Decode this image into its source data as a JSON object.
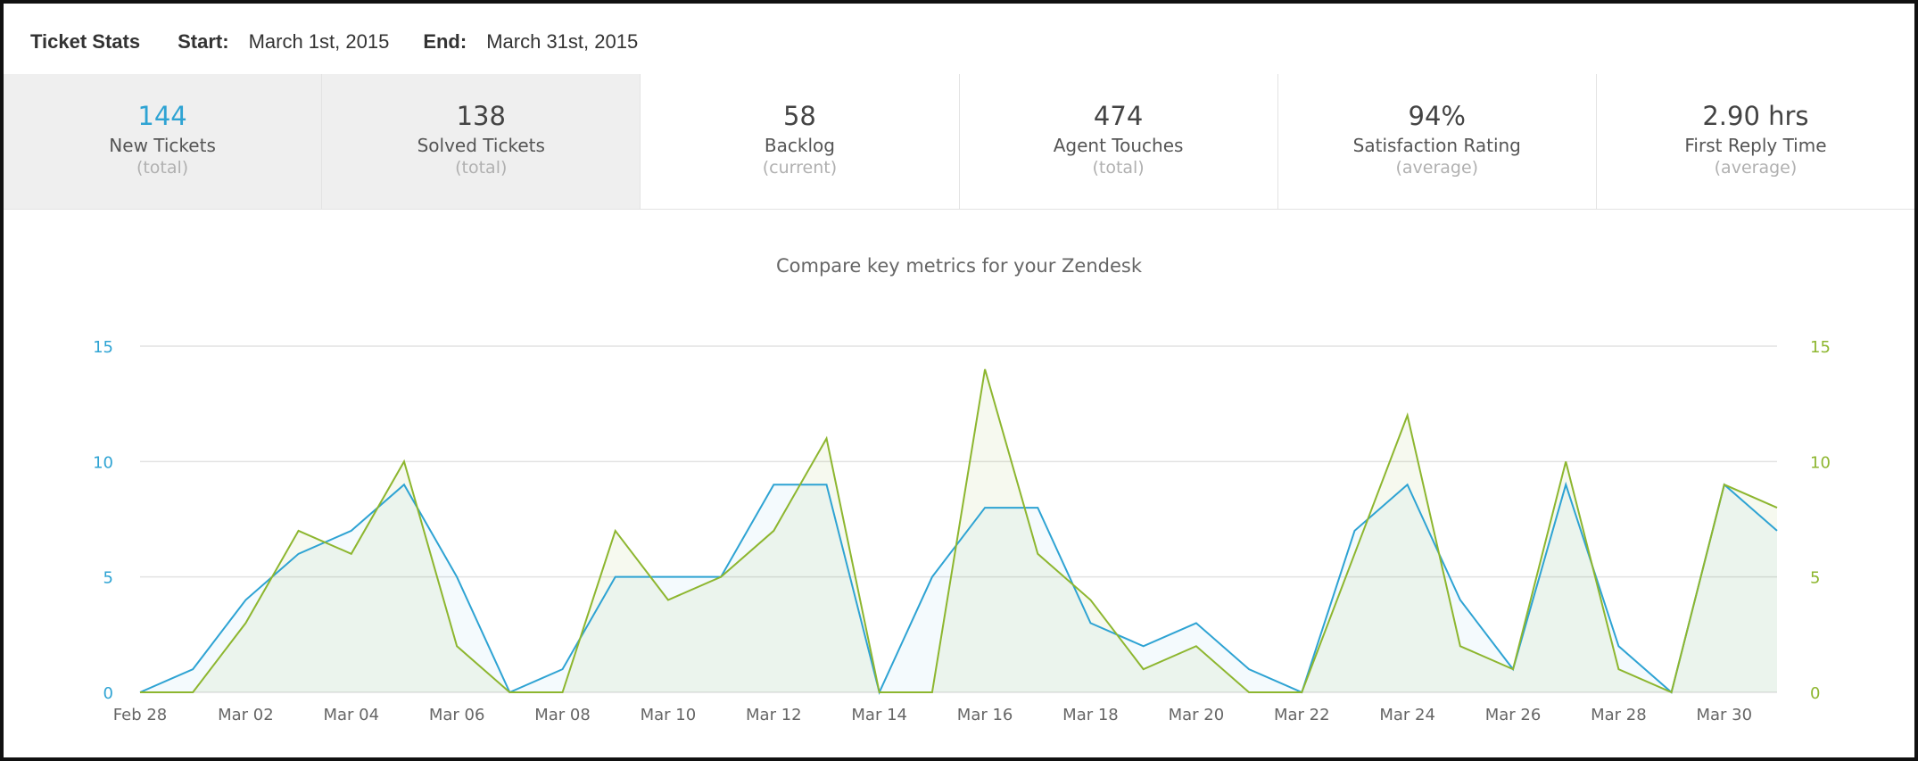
{
  "header": {
    "title": "Ticket Stats",
    "start_label": "Start:",
    "start_value": "March 1st, 2015",
    "end_label": "End:",
    "end_value": "March 31st, 2015"
  },
  "stats": [
    {
      "value": "144",
      "label": "New Tickets",
      "sub": "(total)"
    },
    {
      "value": "138",
      "label": "Solved Tickets",
      "sub": "(total)"
    },
    {
      "value": "58",
      "label": "Backlog",
      "sub": "(current)"
    },
    {
      "value": "474",
      "label": "Agent Touches",
      "sub": "(total)"
    },
    {
      "value": "94%",
      "label": "Satisfaction Rating",
      "sub": "(average)"
    },
    {
      "value": "2.90 hrs",
      "label": "First Reply Time",
      "sub": "(average)"
    }
  ],
  "colors": {
    "blue": "#2ea3d3",
    "green": "#8db62f",
    "grid": "#e2e2e2",
    "axis_text": "#666666"
  },
  "chart_data": {
    "type": "line",
    "title": "Compare key metrics for your Zendesk",
    "x": [
      "Feb 28",
      "Mar 01",
      "Mar 02",
      "Mar 03",
      "Mar 04",
      "Mar 05",
      "Mar 06",
      "Mar 07",
      "Mar 08",
      "Mar 09",
      "Mar 10",
      "Mar 11",
      "Mar 12",
      "Mar 13",
      "Mar 14",
      "Mar 15",
      "Mar 16",
      "Mar 17",
      "Mar 18",
      "Mar 19",
      "Mar 20",
      "Mar 21",
      "Mar 22",
      "Mar 23",
      "Mar 24",
      "Mar 25",
      "Mar 26",
      "Mar 27",
      "Mar 28",
      "Mar 29",
      "Mar 30",
      "Mar 31"
    ],
    "x_tick_labels": [
      "Feb 28",
      "Mar 02",
      "Mar 04",
      "Mar 06",
      "Mar 08",
      "Mar 10",
      "Mar 12",
      "Mar 14",
      "Mar 16",
      "Mar 18",
      "Mar 20",
      "Mar 22",
      "Mar 24",
      "Mar 26",
      "Mar 28",
      "Mar 30"
    ],
    "y_ticks": [
      0,
      5,
      10,
      15
    ],
    "ylim": [
      0,
      15
    ],
    "grid": true,
    "series": [
      {
        "color": "#2ea3d3",
        "axis": "left",
        "values": [
          0,
          1,
          4,
          6,
          7,
          9,
          5,
          0,
          1,
          5,
          5,
          5,
          9,
          9,
          0,
          5,
          8,
          8,
          3,
          2,
          3,
          1,
          0,
          7,
          9,
          4,
          1,
          9,
          2,
          0,
          9,
          7
        ]
      },
      {
        "color": "#8db62f",
        "axis": "right",
        "values": [
          0,
          0,
          3,
          7,
          6,
          10,
          2,
          0,
          0,
          7,
          4,
          5,
          7,
          11,
          0,
          0,
          14,
          6,
          4,
          1,
          2,
          0,
          0,
          6,
          12,
          2,
          1,
          10,
          1,
          0,
          9,
          8
        ]
      }
    ]
  }
}
